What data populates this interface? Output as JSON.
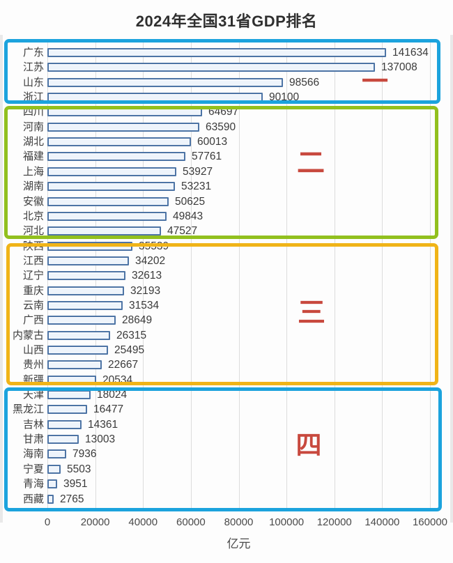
{
  "header": {
    "title": "2024年全国31省GDP排名"
  },
  "chart_data": {
    "type": "bar",
    "orientation": "horizontal",
    "title": "2024年全国31省GDP排名",
    "xlabel": "亿元",
    "ylabel": "",
    "xlim": [
      0,
      160000
    ],
    "x_ticks": [
      0,
      20000,
      40000,
      60000,
      80000,
      100000,
      120000,
      140000,
      160000
    ],
    "grid": true,
    "categories": [
      "广东",
      "江苏",
      "山东",
      "浙江",
      "四川",
      "河南",
      "湖北",
      "福建",
      "上海",
      "湖南",
      "安徽",
      "北京",
      "河北",
      "陕西",
      "江西",
      "辽宁",
      "重庆",
      "云南",
      "广西",
      "内蒙古",
      "山西",
      "贵州",
      "新疆",
      "天津",
      "黑龙江",
      "吉林",
      "甘肃",
      "海南",
      "宁夏",
      "青海",
      "西藏"
    ],
    "values": [
      141634,
      137008,
      98566,
      90100,
      64697,
      63590,
      60013,
      57761,
      53927,
      53231,
      50625,
      49843,
      47527,
      35539,
      34202,
      32613,
      32193,
      31534,
      28649,
      26315,
      25495,
      22667,
      20534,
      18024,
      16477,
      14361,
      13003,
      7936,
      5503,
      3951,
      2765
    ],
    "bar_border_color": "#4d74a5",
    "bar_fill_color": "#eef4fb",
    "gridline_color": "#dcdcdc",
    "tiers": [
      {
        "marker": "一",
        "start_index": 0,
        "count": 4,
        "box_color": "#1ca3dd",
        "provinces": [
          "广东",
          "江苏",
          "山东",
          "浙江"
        ]
      },
      {
        "marker": "二",
        "start_index": 4,
        "count": 9,
        "box_color": "#92c01e",
        "provinces": [
          "四川",
          "河南",
          "湖北",
          "福建",
          "上海",
          "湖南",
          "安徽",
          "北京",
          "河北"
        ]
      },
      {
        "marker": "三",
        "start_index": 13,
        "count": 10,
        "box_color": "#f0b418",
        "provinces": [
          "陕西",
          "江西",
          "辽宁",
          "重庆",
          "云南",
          "广西",
          "内蒙古",
          "山西",
          "贵州",
          "新疆"
        ]
      },
      {
        "marker": "四",
        "start_index": 23,
        "count": 8,
        "box_color": "#1ca3dd",
        "provinces": [
          "天津",
          "黑龙江",
          "吉林",
          "甘肃",
          "海南",
          "宁夏",
          "青海",
          "西藏"
        ]
      }
    ],
    "marker_color": "#c8493e"
  }
}
